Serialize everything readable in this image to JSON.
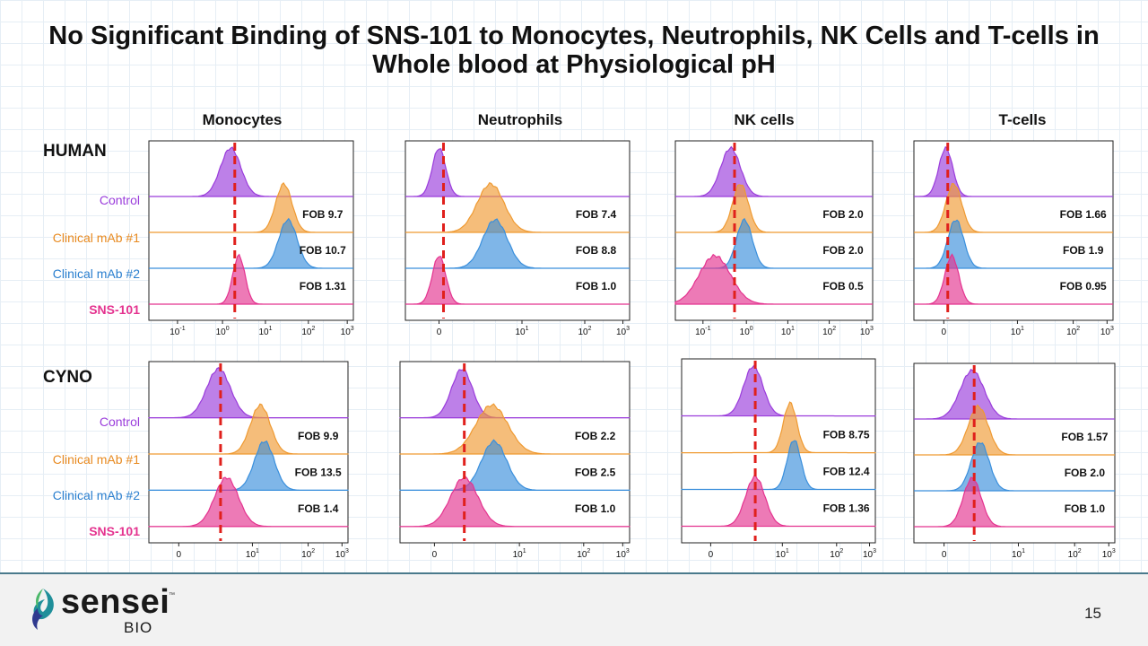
{
  "title": "No Significant Binding of SNS-101 to Monocytes, Neutrophils, NK Cells and T-cells in Whole blood at Physiological pH",
  "page_number": "15",
  "logo": {
    "name": "sensei",
    "tm": "™",
    "sub": "BIO",
    "icon": "sensei-leaf-logo-icon"
  },
  "columns": [
    "Monocytes",
    "Neutrophils",
    "NK cells",
    "T-cells"
  ],
  "species": [
    "HUMAN",
    "CYNO"
  ],
  "row_labels": [
    "Control",
    "Clinical mAb #1",
    "Clinical mAb #2",
    "SNS-101"
  ],
  "colors": {
    "control": "#9a3cdb",
    "mab1": "#ef9a32",
    "mab2": "#3a8fdc",
    "sns": "#e4338f",
    "dashed": "#e0201c"
  },
  "chart_data": [
    {
      "type": "histogram",
      "species": "HUMAN",
      "cell": "Monocytes",
      "x_ticks": [
        "10-1",
        "100",
        "101",
        "102",
        "103"
      ],
      "x_scale": "log",
      "fob": [
        "FOB 9.7",
        "FOB 10.7",
        "FOB 1.31"
      ],
      "peaks": [
        {
          "series": "Control",
          "x": 1.5
        },
        {
          "series": "Clinical mAb #1",
          "x": 25
        },
        {
          "series": "Clinical mAb #2",
          "x": 28
        },
        {
          "series": "SNS-101",
          "x": 2.3
        }
      ]
    },
    {
      "type": "histogram",
      "species": "HUMAN",
      "cell": "Neutrophils",
      "x_ticks": [
        "0",
        "101",
        "102",
        "103"
      ],
      "x_scale": "biexponential",
      "fob": [
        "FOB 7.4",
        "FOB 8.8",
        "FOB 1.0"
      ],
      "peaks": [
        {
          "series": "Control",
          "x": 0
        },
        {
          "series": "Clinical mAb #1",
          "x": 3
        },
        {
          "series": "Clinical mAb #2",
          "x": 4
        },
        {
          "series": "SNS-101",
          "x": 0
        }
      ]
    },
    {
      "type": "histogram",
      "species": "HUMAN",
      "cell": "NK cells",
      "x_ticks": [
        "10-1",
        "100",
        "101",
        "102",
        "103"
      ],
      "x_scale": "log",
      "fob": [
        "FOB 2.0",
        "FOB 2.0",
        "FOB 0.5"
      ],
      "peaks": [
        {
          "series": "Control",
          "x": 0.4
        },
        {
          "series": "Clinical mAb #1",
          "x": 0.7
        },
        {
          "series": "Clinical mAb #2",
          "x": 0.8
        },
        {
          "series": "SNS-101",
          "x": 0.25
        }
      ]
    },
    {
      "type": "histogram",
      "species": "HUMAN",
      "cell": "T-cells",
      "x_ticks": [
        "0",
        "101",
        "102",
        "103"
      ],
      "x_scale": "biexponential",
      "fob": [
        "FOB 1.66",
        "FOB 1.9",
        "FOB 0.95"
      ],
      "peaks": [
        {
          "series": "Control",
          "x": 0
        },
        {
          "series": "Clinical mAb #1",
          "x": 1
        },
        {
          "series": "Clinical mAb #2",
          "x": 1.5
        },
        {
          "series": "SNS-101",
          "x": 0.5
        }
      ]
    },
    {
      "type": "histogram",
      "species": "CYNO",
      "cell": "Monocytes",
      "x_ticks": [
        "0",
        "101",
        "102",
        "103"
      ],
      "x_scale": "biexponential",
      "fob": [
        "FOB 9.9",
        "FOB 13.5",
        "FOB 1.4"
      ],
      "peaks": [
        {
          "series": "Control",
          "x": 1
        },
        {
          "series": "Clinical mAb #1",
          "x": 7
        },
        {
          "series": "Clinical mAb #2",
          "x": 8
        },
        {
          "series": "SNS-101",
          "x": 2
        }
      ]
    },
    {
      "type": "histogram",
      "species": "CYNO",
      "cell": "Neutrophils",
      "x_ticks": [
        "0",
        "101",
        "102",
        "103"
      ],
      "x_scale": "biexponential",
      "fob": [
        "FOB 2.2",
        "FOB 2.5",
        "FOB 1.0"
      ],
      "peaks": [
        {
          "series": "Control",
          "x": 2
        },
        {
          "series": "Clinical mAb #1",
          "x": 4
        },
        {
          "series": "Clinical mAb #2",
          "x": 5
        },
        {
          "series": "SNS-101",
          "x": 2
        }
      ]
    },
    {
      "type": "histogram",
      "species": "CYNO",
      "cell": "NK cells",
      "x_ticks": [
        "0",
        "101",
        "102",
        "103"
      ],
      "x_scale": "biexponential",
      "fob": [
        "FOB 8.75",
        "FOB 12.4",
        "FOB 1.36"
      ],
      "peaks": [
        {
          "series": "Control",
          "x": 2
        },
        {
          "series": "Clinical mAb #1",
          "x": 7
        },
        {
          "series": "Clinical mAb #2",
          "x": 8
        },
        {
          "series": "SNS-101",
          "x": 2
        }
      ]
    },
    {
      "type": "histogram",
      "species": "CYNO",
      "cell": "T-cells",
      "x_ticks": [
        "0",
        "101",
        "102",
        "103"
      ],
      "x_scale": "biexponential",
      "fob": [
        "FOB 1.57",
        "FOB 2.0",
        "FOB 1.0"
      ],
      "peaks": [
        {
          "series": "Control",
          "x": 0
        },
        {
          "series": "Clinical mAb #1",
          "x": 0.5
        },
        {
          "series": "Clinical mAb #2",
          "x": 1.5
        },
        {
          "series": "SNS-101",
          "x": 0
        }
      ]
    }
  ]
}
